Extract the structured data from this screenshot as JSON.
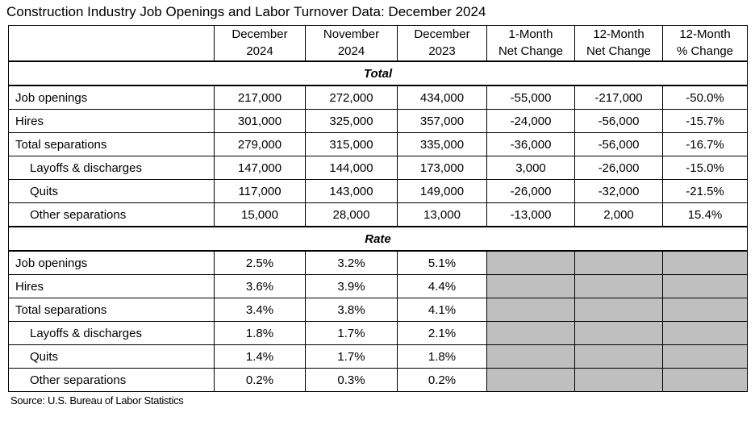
{
  "title": "Construction Industry Job Openings and Labor Turnover Data: December 2024",
  "source": "Source: U.S. Bureau of Labor Statistics",
  "colors": {
    "grid": "#000000",
    "shaded_cell": "#BFBFBF",
    "background": "#FFFFFF",
    "text": "#000000"
  },
  "table": {
    "columns": [
      {
        "line1": "",
        "line2": ""
      },
      {
        "line1": "December",
        "line2": "2024"
      },
      {
        "line1": "November",
        "line2": "2024"
      },
      {
        "line1": "December",
        "line2": "2023"
      },
      {
        "line1": "1-Month",
        "line2": "Net Change"
      },
      {
        "line1": "12-Month",
        "line2": "Net Change"
      },
      {
        "line1": "12-Month",
        "line2": "% Change"
      }
    ],
    "sections": [
      {
        "header": "Total",
        "rows": [
          {
            "label": "Job openings",
            "indent": false,
            "values": [
              "217,000",
              "272,000",
              "434,000",
              "-55,000",
              "-217,000",
              "-50.0%"
            ]
          },
          {
            "label": "Hires",
            "indent": false,
            "values": [
              "301,000",
              "325,000",
              "357,000",
              "-24,000",
              "-56,000",
              "-15.7%"
            ]
          },
          {
            "label": "Total separations",
            "indent": false,
            "values": [
              "279,000",
              "315,000",
              "335,000",
              "-36,000",
              "-56,000",
              "-16.7%"
            ]
          },
          {
            "label": "Layoffs & discharges",
            "indent": true,
            "values": [
              "147,000",
              "144,000",
              "173,000",
              "3,000",
              "-26,000",
              "-15.0%"
            ]
          },
          {
            "label": "Quits",
            "indent": true,
            "values": [
              "117,000",
              "143,000",
              "149,000",
              "-26,000",
              "-32,000",
              "-21.5%"
            ]
          },
          {
            "label": "Other separations",
            "indent": true,
            "values": [
              "15,000",
              "28,000",
              "13,000",
              "-13,000",
              "2,000",
              "15.4%"
            ]
          }
        ]
      },
      {
        "header": "Rate",
        "rows": [
          {
            "label": "Job openings",
            "indent": false,
            "values": [
              "2.5%",
              "3.2%",
              "5.1%",
              "",
              "",
              ""
            ]
          },
          {
            "label": "Hires",
            "indent": false,
            "values": [
              "3.6%",
              "3.9%",
              "4.4%",
              "",
              "",
              ""
            ]
          },
          {
            "label": "Total separations",
            "indent": false,
            "values": [
              "3.4%",
              "3.8%",
              "4.1%",
              "",
              "",
              ""
            ]
          },
          {
            "label": "Layoffs & discharges",
            "indent": true,
            "values": [
              "1.8%",
              "1.7%",
              "2.1%",
              "",
              "",
              ""
            ]
          },
          {
            "label": "Quits",
            "indent": true,
            "values": [
              "1.4%",
              "1.7%",
              "1.8%",
              "",
              "",
              ""
            ]
          },
          {
            "label": "Other separations",
            "indent": true,
            "values": [
              "0.2%",
              "0.3%",
              "0.2%",
              "",
              "",
              ""
            ]
          }
        ]
      }
    ]
  }
}
